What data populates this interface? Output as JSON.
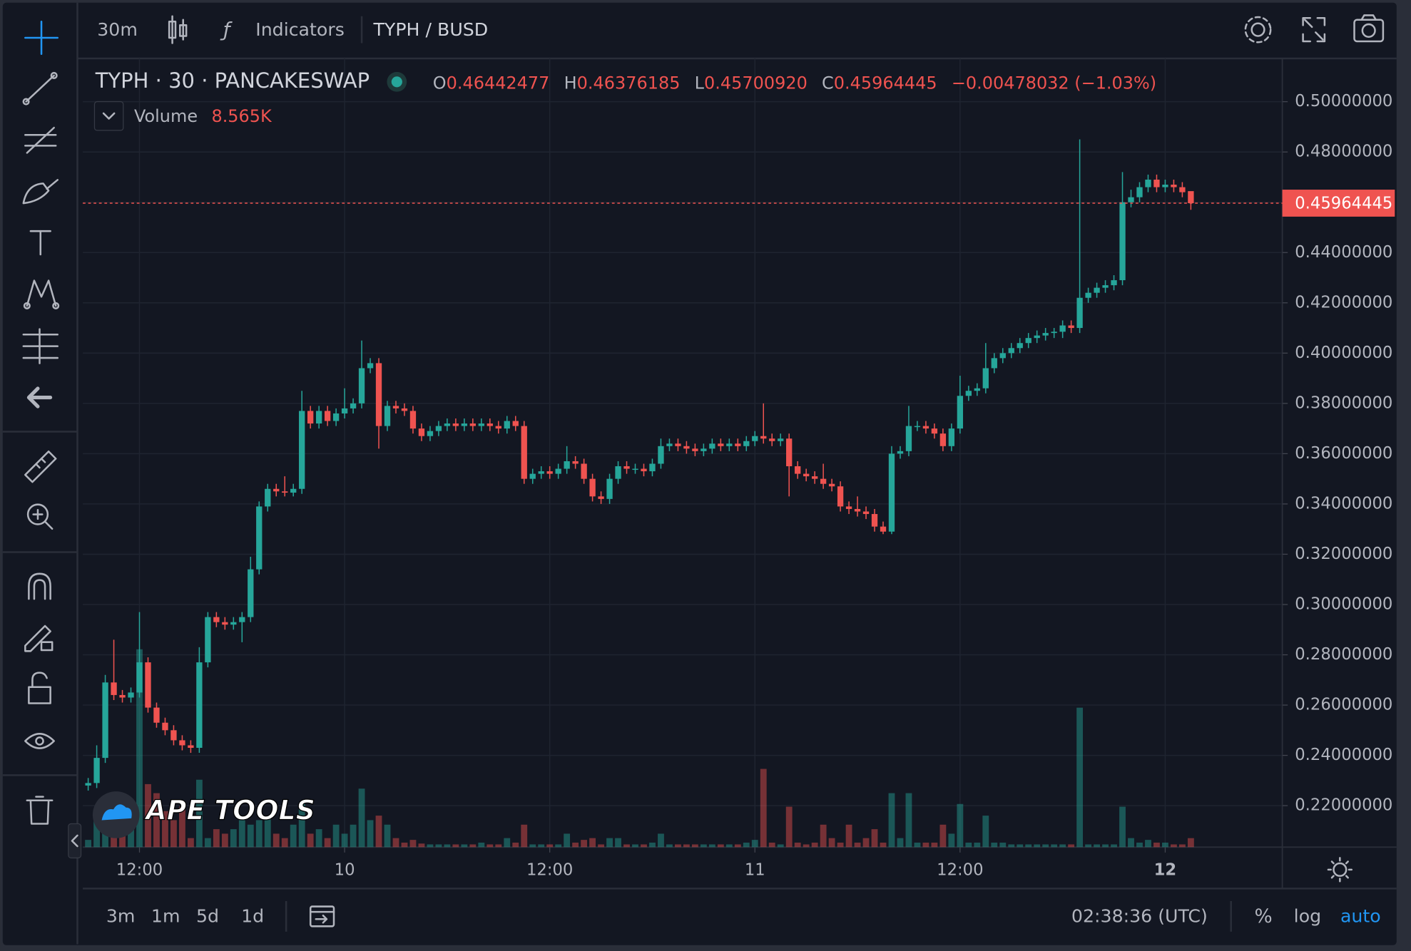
{
  "toolbar": {
    "interval": "30m",
    "indicators": "Indicators",
    "symbol": "TYPH / BUSD"
  },
  "legend": {
    "title": "TYPH · 30 · PANCAKESWAP",
    "o": "O",
    "open": "0.46442477",
    "h": "H",
    "high": "0.46376185",
    "l": "L",
    "low": "0.45700920",
    "c": "C",
    "close": "0.45964445",
    "change": "−0.00478032 (−1.03%)",
    "volume": "Volume",
    "volume_value": "8.565K"
  },
  "logo": "APE TOOLS",
  "bottom_bar": {
    "ranges": [
      "3m",
      "1m",
      "5d",
      "1d"
    ],
    "clock": "02:38:36 (UTC)",
    "percent": "%",
    "log": "log",
    "auto": "auto"
  },
  "chart_data": {
    "type": "candlestick",
    "up_color": "#26a69a",
    "down_color": "#ef5350",
    "grid": true,
    "log_scale": false,
    "auto_scale": true,
    "ylim": [
      0.2035,
      0.5172
    ],
    "yticks": [
      {
        "value": 0.22,
        "label": "0.22000000"
      },
      {
        "value": 0.24,
        "label": "0.24000000"
      },
      {
        "value": 0.26,
        "label": "0.26000000"
      },
      {
        "value": 0.28,
        "label": "0.28000000"
      },
      {
        "value": 0.3,
        "label": "0.30000000"
      },
      {
        "value": 0.32,
        "label": "0.32000000"
      },
      {
        "value": 0.34,
        "label": "0.34000000"
      },
      {
        "value": 0.36,
        "label": "0.36000000"
      },
      {
        "value": 0.38,
        "label": "0.38000000"
      },
      {
        "value": 0.4,
        "label": "0.40000000"
      },
      {
        "value": 0.42,
        "label": "0.42000000"
      },
      {
        "value": 0.44,
        "label": "0.44000000"
      },
      {
        "value": 0.46,
        "label": "0.46000000"
      },
      {
        "value": 0.48,
        "label": "0.48000000"
      },
      {
        "value": 0.5,
        "label": "0.50000000"
      }
    ],
    "xlim": [
      -0.63,
      139.7
    ],
    "xticks": [
      {
        "value": 6,
        "label": "12:00"
      },
      {
        "value": 30,
        "label": "10"
      },
      {
        "value": 54,
        "label": "12:00"
      },
      {
        "value": 78,
        "label": "11"
      },
      {
        "value": 102,
        "label": "12:00"
      },
      {
        "value": 126,
        "label": "12"
      }
    ],
    "open": [
      0.228,
      0.229,
      0.239,
      0.269,
      0.264,
      0.263,
      0.265,
      0.277,
      0.259,
      0.253,
      0.25,
      0.246,
      0.244,
      0.243,
      0.277,
      0.295,
      0.293,
      0.292,
      0.293,
      0.295,
      0.314,
      0.339,
      0.346,
      0.345,
      0.3445,
      0.346,
      0.377,
      0.372,
      0.377,
      0.373,
      0.376,
      0.378,
      0.38,
      0.394,
      0.396,
      0.371,
      0.379,
      0.378,
      0.377,
      0.37,
      0.367,
      0.369,
      0.371,
      0.372,
      0.371,
      0.372,
      0.371,
      0.372,
      0.371,
      0.37,
      0.373,
      0.371,
      0.35,
      0.352,
      0.353,
      0.352,
      0.354,
      0.357,
      0.356,
      0.35,
      0.343,
      0.342,
      0.35,
      0.355,
      0.354,
      0.354,
      0.353,
      0.356,
      0.363,
      0.364,
      0.363,
      0.362,
      0.361,
      0.362,
      0.364,
      0.363,
      0.364,
      0.363,
      0.365,
      0.367,
      0.366,
      0.365,
      0.366,
      0.355,
      0.352,
      0.351,
      0.35,
      0.348,
      0.347,
      0.339,
      0.338,
      0.337,
      0.336,
      0.331,
      0.329,
      0.36,
      0.361,
      0.371,
      0.371,
      0.37,
      0.368,
      0.363,
      0.37,
      0.383,
      0.385,
      0.386,
      0.394,
      0.398,
      0.4,
      0.402,
      0.404,
      0.406,
      0.407,
      0.408,
      0.4085,
      0.411,
      0.41,
      0.422,
      0.424,
      0.426,
      0.427,
      0.429,
      0.46,
      0.462,
      0.466,
      0.469,
      0.466,
      0.467,
      0.466,
      0.46442477
    ],
    "high": [
      0.231,
      0.244,
      0.272,
      0.286,
      0.266,
      0.267,
      0.297,
      0.279,
      0.261,
      0.255,
      0.252,
      0.248,
      0.246,
      0.283,
      0.297,
      0.297,
      0.295,
      0.295,
      0.297,
      0.319,
      0.341,
      0.348,
      0.348,
      0.351,
      0.348,
      0.385,
      0.379,
      0.379,
      0.379,
      0.378,
      0.386,
      0.382,
      0.405,
      0.398,
      0.398,
      0.381,
      0.381,
      0.38,
      0.379,
      0.372,
      0.371,
      0.373,
      0.374,
      0.374,
      0.374,
      0.374,
      0.374,
      0.374,
      0.373,
      0.375,
      0.375,
      0.373,
      0.354,
      0.355,
      0.355,
      0.356,
      0.363,
      0.359,
      0.358,
      0.352,
      0.345,
      0.352,
      0.357,
      0.357,
      0.356,
      0.356,
      0.358,
      0.366,
      0.366,
      0.366,
      0.365,
      0.364,
      0.364,
      0.366,
      0.366,
      0.366,
      0.366,
      0.367,
      0.369,
      0.38,
      0.368,
      0.368,
      0.368,
      0.357,
      0.354,
      0.353,
      0.356,
      0.35,
      0.349,
      0.341,
      0.343,
      0.339,
      0.338,
      0.333,
      0.363,
      0.363,
      0.379,
      0.373,
      0.373,
      0.372,
      0.37,
      0.372,
      0.391,
      0.387,
      0.388,
      0.404,
      0.4,
      0.402,
      0.404,
      0.406,
      0.408,
      0.409,
      0.41,
      0.41,
      0.413,
      0.413,
      0.485,
      0.426,
      0.428,
      0.429,
      0.431,
      0.472,
      0.465,
      0.468,
      0.471,
      0.471,
      0.469,
      0.469,
      0.468,
      0.46376185
    ],
    "low": [
      0.226,
      0.227,
      0.237,
      0.262,
      0.261,
      0.261,
      0.263,
      0.257,
      0.251,
      0.248,
      0.244,
      0.242,
      0.241,
      0.241,
      0.275,
      0.291,
      0.29,
      0.29,
      0.285,
      0.293,
      0.312,
      0.337,
      0.343,
      0.343,
      0.343,
      0.344,
      0.37,
      0.37,
      0.371,
      0.371,
      0.374,
      0.376,
      0.378,
      0.392,
      0.362,
      0.369,
      0.376,
      0.375,
      0.368,
      0.365,
      0.365,
      0.367,
      0.369,
      0.369,
      0.369,
      0.369,
      0.369,
      0.369,
      0.368,
      0.368,
      0.369,
      0.348,
      0.348,
      0.35,
      0.35,
      0.35,
      0.352,
      0.354,
      0.348,
      0.341,
      0.34,
      0.34,
      0.348,
      0.352,
      0.352,
      0.351,
      0.351,
      0.354,
      0.361,
      0.361,
      0.36,
      0.359,
      0.359,
      0.36,
      0.361,
      0.361,
      0.361,
      0.361,
      0.363,
      0.364,
      0.363,
      0.363,
      0.343,
      0.35,
      0.349,
      0.348,
      0.346,
      0.345,
      0.337,
      0.336,
      0.335,
      0.334,
      0.329,
      0.328,
      0.328,
      0.358,
      0.359,
      0.369,
      0.368,
      0.366,
      0.361,
      0.361,
      0.368,
      0.381,
      0.383,
      0.384,
      0.392,
      0.396,
      0.398,
      0.4,
      0.402,
      0.404,
      0.405,
      0.406,
      0.406,
      0.408,
      0.408,
      0.42,
      0.422,
      0.424,
      0.425,
      0.427,
      0.458,
      0.46,
      0.464,
      0.464,
      0.464,
      0.464,
      0.462,
      0.4570092
    ],
    "close": [
      0.229,
      0.239,
      0.269,
      0.264,
      0.263,
      0.265,
      0.277,
      0.259,
      0.253,
      0.25,
      0.246,
      0.244,
      0.243,
      0.277,
      0.295,
      0.293,
      0.292,
      0.293,
      0.295,
      0.314,
      0.339,
      0.346,
      0.345,
      0.3445,
      0.346,
      0.377,
      0.372,
      0.377,
      0.373,
      0.376,
      0.378,
      0.38,
      0.394,
      0.396,
      0.371,
      0.379,
      0.378,
      0.377,
      0.37,
      0.367,
      0.369,
      0.371,
      0.372,
      0.371,
      0.372,
      0.371,
      0.372,
      0.371,
      0.37,
      0.373,
      0.371,
      0.35,
      0.352,
      0.353,
      0.352,
      0.354,
      0.357,
      0.356,
      0.35,
      0.343,
      0.342,
      0.35,
      0.355,
      0.354,
      0.354,
      0.353,
      0.356,
      0.363,
      0.364,
      0.363,
      0.362,
      0.361,
      0.362,
      0.364,
      0.363,
      0.364,
      0.363,
      0.365,
      0.367,
      0.366,
      0.365,
      0.366,
      0.355,
      0.352,
      0.351,
      0.35,
      0.348,
      0.347,
      0.339,
      0.338,
      0.337,
      0.336,
      0.331,
      0.329,
      0.36,
      0.361,
      0.371,
      0.371,
      0.37,
      0.368,
      0.363,
      0.37,
      0.383,
      0.385,
      0.386,
      0.394,
      0.398,
      0.4,
      0.402,
      0.404,
      0.406,
      0.407,
      0.408,
      0.4085,
      0.411,
      0.41,
      0.422,
      0.424,
      0.426,
      0.427,
      0.429,
      0.46,
      0.462,
      0.466,
      0.469,
      0.466,
      0.467,
      0.466,
      0.464,
      0.45964445
    ],
    "volume": [
      6.9,
      34.3,
      47.1,
      25.7,
      17.1,
      30.0,
      188.4,
      60.0,
      51.4,
      34.3,
      25.7,
      38.5,
      8.6,
      64.2,
      8.6,
      17.1,
      12.8,
      17.1,
      25.7,
      21.4,
      25.7,
      30.0,
      12.8,
      8.6,
      21.4,
      42.8,
      12.8,
      17.1,
      8.6,
      21.4,
      12.8,
      21.4,
      55.7,
      25.7,
      30.0,
      21.4,
      8.6,
      4.3,
      6.9,
      3.4,
      2.6,
      2.6,
      2.6,
      2.6,
      2.6,
      2.6,
      4.3,
      2.6,
      2.6,
      8.6,
      4.3,
      21.4,
      2.6,
      2.6,
      2.6,
      2.6,
      12.8,
      4.3,
      6.9,
      8.6,
      2.6,
      8.6,
      8.6,
      2.6,
      2.6,
      2.6,
      4.3,
      12.8,
      2.6,
      2.6,
      2.6,
      2.6,
      2.6,
      2.6,
      2.6,
      2.6,
      2.6,
      4.3,
      6.9,
      74.5,
      4.3,
      2.6,
      38.5,
      4.3,
      2.6,
      4.3,
      21.4,
      8.6,
      4.3,
      21.4,
      4.3,
      8.6,
      17.1,
      4.3,
      51.4,
      8.6,
      51.4,
      4.3,
      4.3,
      4.3,
      21.4,
      12.8,
      41.1,
      4.3,
      4.3,
      30.0,
      4.3,
      4.3,
      2.6,
      2.6,
      2.6,
      2.6,
      2.6,
      2.6,
      2.6,
      2.6,
      132.8,
      2.6,
      2.6,
      2.6,
      2.6,
      38.5,
      8.6,
      4.3,
      6.9,
      4.3,
      4.3,
      2.6,
      2.6,
      8.565
    ]
  }
}
